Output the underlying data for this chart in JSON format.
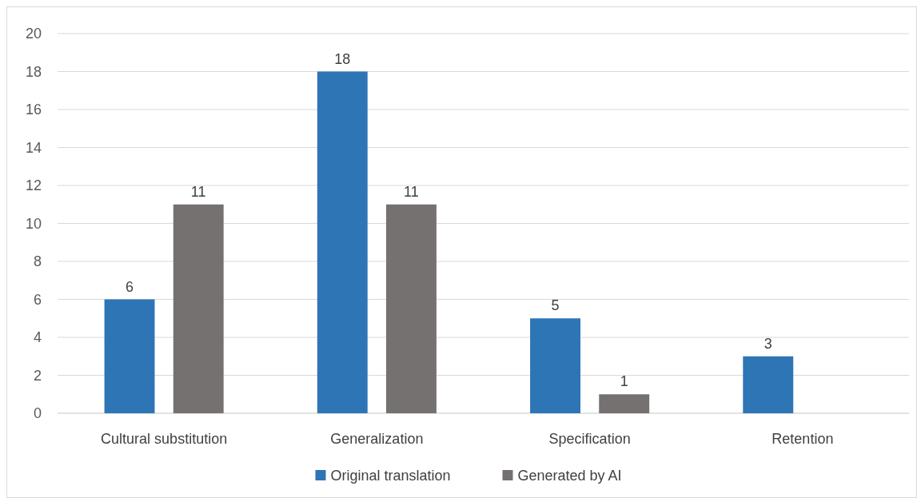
{
  "chart_data": {
    "type": "bar",
    "categories": [
      "Cultural substitution",
      "Generalization",
      "Specification",
      "Retention"
    ],
    "series": [
      {
        "name": "Original translation",
        "color": "#2e75b6",
        "values": [
          6,
          18,
          5,
          3
        ]
      },
      {
        "name": "Generated by AI",
        "color": "#767171",
        "values": [
          11,
          11,
          1,
          null
        ]
      }
    ],
    "ylim": [
      0,
      20
    ],
    "yticks": [
      0,
      2,
      4,
      6,
      8,
      10,
      12,
      14,
      16,
      18,
      20
    ],
    "grid": "y",
    "legend": "bottom",
    "data_labels": true
  }
}
